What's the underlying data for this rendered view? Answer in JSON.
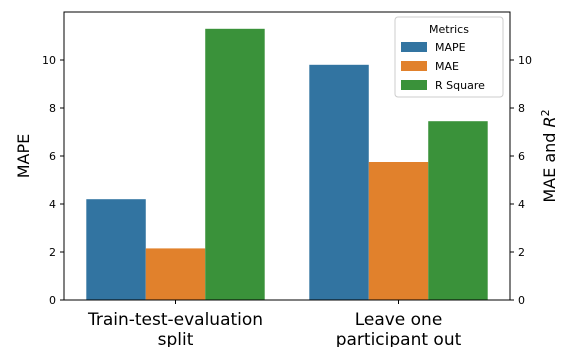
{
  "chart_data": {
    "type": "bar",
    "categories": [
      "Train-test-evaluation split",
      "Leave one participant out"
    ],
    "category_lines": [
      [
        "Train-test-evaluation",
        "split"
      ],
      [
        "Leave one",
        "participant out"
      ]
    ],
    "series": [
      {
        "name": "MAPE",
        "values": [
          4.2,
          9.8
        ],
        "color": "#3274a1"
      },
      {
        "name": "MAE",
        "values": [
          2.15,
          5.75
        ],
        "color": "#e1812c"
      },
      {
        "name": "R Square",
        "values": [
          11.3,
          7.45
        ],
        "color": "#3a923a"
      }
    ],
    "ylabel_left": "MAPE",
    "ylabel_right_text": "MAE and ",
    "ylabel_right_symbol": "R",
    "ylabel_right_sup": "2",
    "ylim": [
      0,
      12
    ],
    "yticks": [
      0,
      2,
      4,
      6,
      8,
      10
    ],
    "ytick_labels": [
      "0",
      "2",
      "4",
      "6",
      "8",
      "10"
    ],
    "grid": false,
    "legend": {
      "title": "Metrics",
      "placement": "top-right"
    }
  }
}
